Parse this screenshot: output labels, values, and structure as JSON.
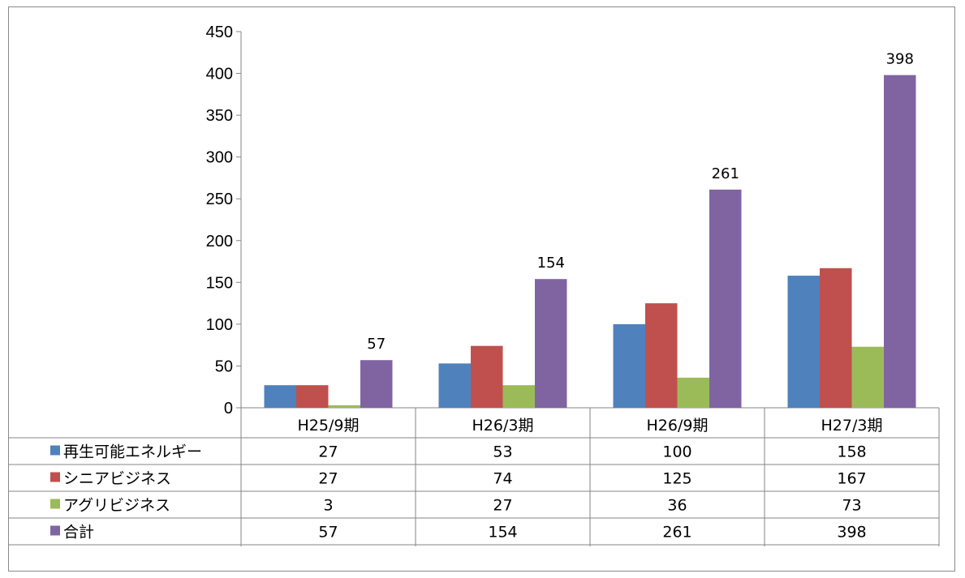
{
  "chart_data": {
    "type": "bar",
    "categories": [
      "H25/9期",
      "H26/3期",
      "H26/9期",
      "H27/3期"
    ],
    "ylim": [
      0,
      450
    ],
    "yticks": [
      0,
      50,
      100,
      150,
      200,
      250,
      300,
      350,
      400,
      450
    ],
    "grid": false,
    "legend": "data-table",
    "series": [
      {
        "name": "再生可能エネルギー",
        "color": "#4F81BD",
        "values": [
          27,
          53,
          100,
          158
        ]
      },
      {
        "name": "シニアビジネス",
        "color": "#C0504D",
        "values": [
          27,
          74,
          125,
          167
        ]
      },
      {
        "name": "アグリビジネス",
        "color": "#9BBB59",
        "values": [
          3,
          27,
          36,
          73
        ]
      },
      {
        "name": "合計",
        "color": "#8064A2",
        "values": [
          57,
          154,
          261,
          398
        ],
        "data_labels": true
      }
    ]
  }
}
